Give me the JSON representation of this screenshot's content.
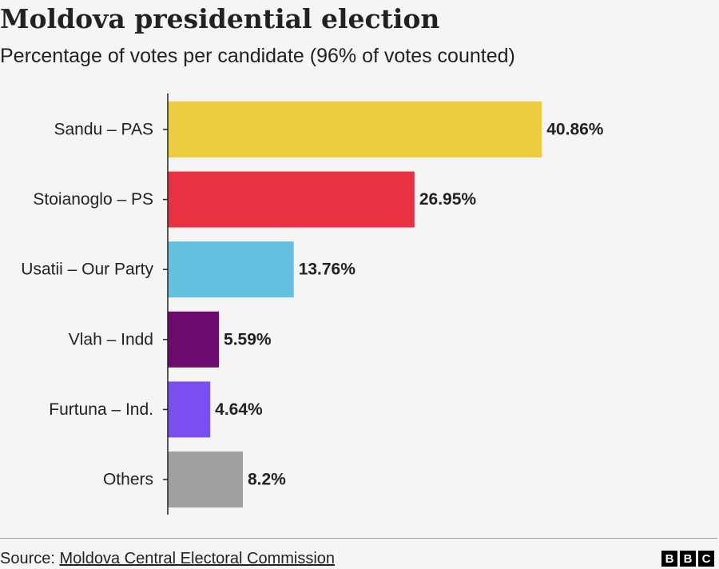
{
  "title": "Moldova presidential election",
  "subtitle": "Percentage of votes per candidate (96% of votes counted)",
  "source": {
    "prefix": "Source: ",
    "link_text": "Moldova Central Electoral Commission"
  },
  "logo": {
    "letters": [
      "B",
      "B",
      "C"
    ]
  },
  "chart_data": {
    "type": "bar",
    "orientation": "horizontal",
    "title": "Moldova presidential election",
    "subtitle": "Percentage of votes per candidate (96% of votes counted)",
    "categories": [
      "Sandu – PAS",
      "Stoianoglo – PS",
      "Usatii – Our Party",
      "Vlah – Indd",
      "Furtuna – Ind.",
      "Others"
    ],
    "values": [
      40.86,
      26.95,
      13.76,
      5.59,
      4.64,
      8.2
    ],
    "value_labels": [
      "40.86%",
      "26.95%",
      "13.76%",
      "5.59%",
      "4.64%",
      "8.2%"
    ],
    "colors": [
      "#EDCC40",
      "#E83241",
      "#63C0DE",
      "#6C0A6D",
      "#7A4FF0",
      "#A0A0A0"
    ],
    "xlim": [
      0,
      45
    ],
    "grid": false,
    "legend": "none"
  }
}
